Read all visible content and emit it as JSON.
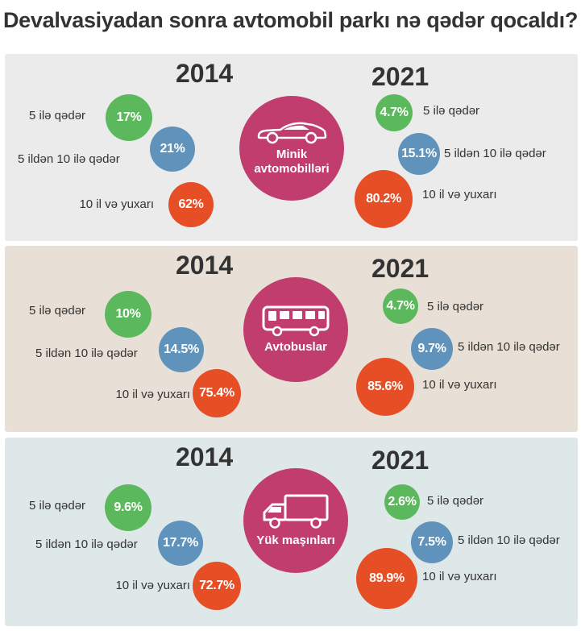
{
  "title": "Devalvasiyadan sonra avtomobil parkı nə qədər qocaldı?",
  "years": [
    "2014",
    "2021"
  ],
  "colors": {
    "green": "#5cb85c",
    "blue": "#5f93bc",
    "orange": "#e64e26",
    "center": "#c03d6e"
  },
  "sections": [
    {
      "name_lines": [
        "Minik",
        "avtomobilləri"
      ],
      "icon": "car-icon",
      "y2014": [
        {
          "label": "5 ilə qədər",
          "value": "17%"
        },
        {
          "label": "5 ildən 10 ilə qədər",
          "value": "21%"
        },
        {
          "label": "10 il və yuxarı",
          "value": "62%"
        }
      ],
      "y2021": [
        {
          "label": "5 ilə qədər",
          "value": "4.7%"
        },
        {
          "label": "5 ildən 10 ilə qədər",
          "value": "15.1%"
        },
        {
          "label": "10 il və yuxarı",
          "value": "80.2%"
        }
      ]
    },
    {
      "name_lines": [
        "Avtobuslar"
      ],
      "icon": "bus-icon",
      "y2014": [
        {
          "label": "5 ilə qədər",
          "value": "10%"
        },
        {
          "label": "5 ildən 10 ilə qədər",
          "value": "14.5%"
        },
        {
          "label": "10 il və yuxarı",
          "value": "75.4%"
        }
      ],
      "y2021": [
        {
          "label": "5 ilə qədər",
          "value": "4.7%"
        },
        {
          "label": "5 ildən 10 ilə qədər",
          "value": "9.7%"
        },
        {
          "label": "10 il və yuxarı",
          "value": "85.6%"
        }
      ]
    },
    {
      "name_lines": [
        "Yük maşınları"
      ],
      "icon": "truck-icon",
      "y2014": [
        {
          "label": "5 ilə qədər",
          "value": "9.6%"
        },
        {
          "label": "5 ildən 10 ilə qədər",
          "value": "17.7%"
        },
        {
          "label": "10 il və yuxarı",
          "value": "72.7%"
        }
      ],
      "y2021": [
        {
          "label": "5 ilə qədər",
          "value": "2.6%"
        },
        {
          "label": "5 ildən 10 ilə qədər",
          "value": "7.5%"
        },
        {
          "label": "10 il və yuxarı",
          "value": "89.9%"
        }
      ]
    }
  ],
  "chart_data": {
    "type": "bubble",
    "categories": [
      "5 ilə qədər",
      "5 ildən 10 ilə qədər",
      "10 il və yuxarı"
    ],
    "groups": [
      {
        "name": "Minik avtomobilləri",
        "series": [
          {
            "name": "2014",
            "values": [
              17,
              21,
              62
            ]
          },
          {
            "name": "2021",
            "values": [
              4.7,
              15.1,
              80.2
            ]
          }
        ]
      },
      {
        "name": "Avtobuslar",
        "series": [
          {
            "name": "2014",
            "values": [
              10,
              14.5,
              75.4
            ]
          },
          {
            "name": "2021",
            "values": [
              4.7,
              9.7,
              85.6
            ]
          }
        ]
      },
      {
        "name": "Yük maşınları",
        "series": [
          {
            "name": "2014",
            "values": [
              9.6,
              17.7,
              72.7
            ]
          },
          {
            "name": "2021",
            "values": [
              2.6,
              7.5,
              89.9
            ]
          }
        ]
      }
    ],
    "unit": "%"
  }
}
